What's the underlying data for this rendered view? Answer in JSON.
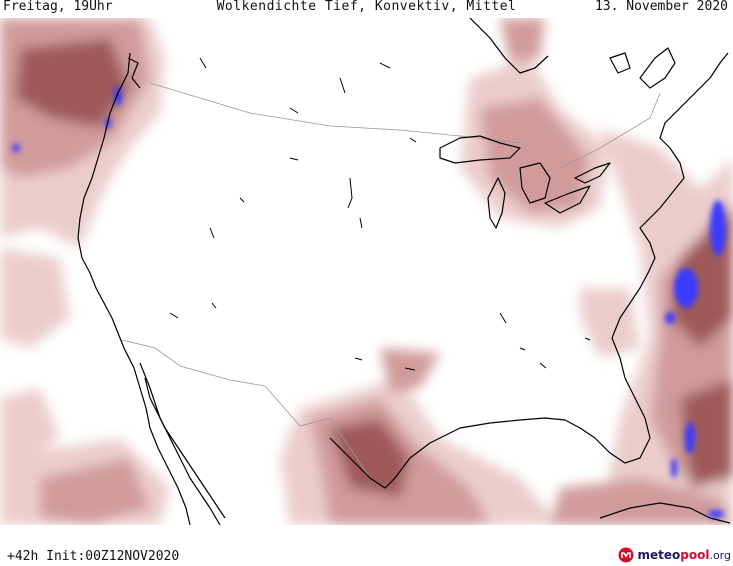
{
  "header": {
    "left": "Freitag, 19Uhr",
    "center": "Wolkendichte  Tief, Konvektiv, Mittel",
    "right": "13. November 2020"
  },
  "footer": {
    "run_info": "+42h Init:00Z12NOV2020"
  },
  "logo": {
    "part1": "meteo",
    "part2": "pool",
    "part3": ".org"
  },
  "map": {
    "region": "United States",
    "colors": {
      "cloud_light": "#e8c4c4",
      "cloud_mid": "#c98a8a",
      "cloud_dark": "#8f3c3c",
      "convective": "#3a3aff",
      "border": "#999999",
      "coast": "#000000"
    }
  }
}
